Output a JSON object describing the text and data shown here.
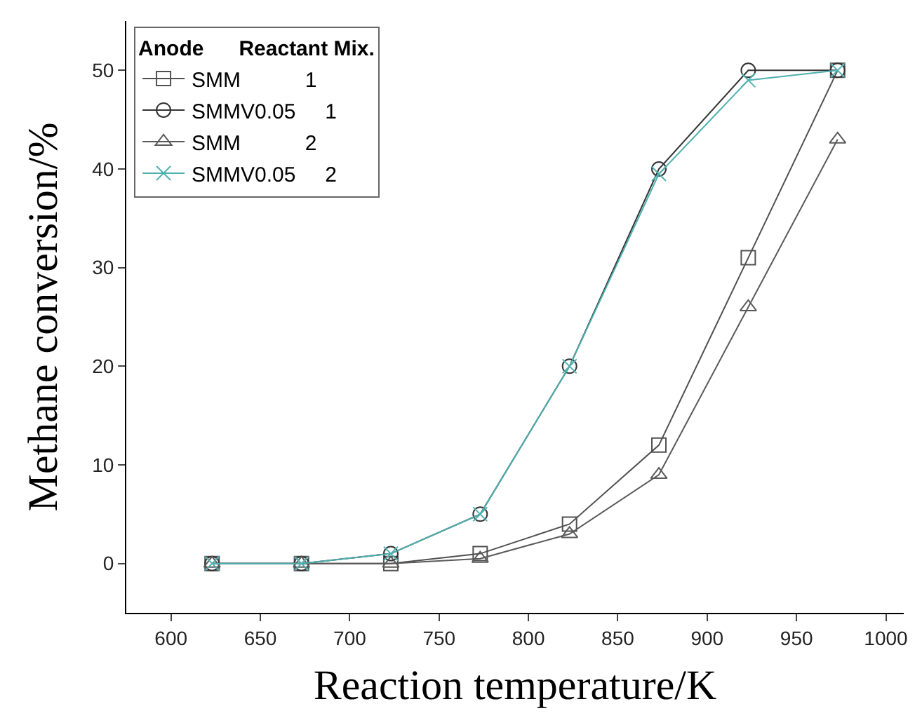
{
  "chart_data": {
    "type": "line",
    "xlabel": "Reaction temperature/K",
    "ylabel": "Methane conversion/%",
    "legend_title": "Anode      Reactant Mix.",
    "x": [
      623,
      673,
      723,
      773,
      823,
      873,
      923,
      973
    ],
    "series": [
      {
        "name": "SMM           1",
        "color": "#505050",
        "marker": "square",
        "values": [
          0,
          0,
          0,
          1,
          4,
          12,
          31,
          50
        ]
      },
      {
        "name": "SMMV0.05     1",
        "color": "#333333",
        "marker": "circle",
        "values": [
          0,
          0,
          1,
          5,
          20,
          40,
          50,
          50
        ]
      },
      {
        "name": "SMM           2",
        "color": "#5a5a5a",
        "marker": "triangle",
        "values": [
          0,
          0,
          0,
          0.5,
          3,
          9,
          26,
          43
        ]
      },
      {
        "name": "SMMV0.05     2",
        "color": "#4fb0b0",
        "marker": "cross",
        "values": [
          0,
          0,
          1,
          5,
          20,
          39.5,
          49,
          50
        ]
      }
    ],
    "xlim": [
      575,
      1010
    ],
    "xticks": [
      600,
      650,
      700,
      750,
      800,
      850,
      900,
      950,
      1000
    ],
    "ylim": [
      -5,
      55
    ],
    "yticks": [
      0,
      10,
      20,
      30,
      40,
      50
    ],
    "legend": "top left",
    "line_style": "solid"
  }
}
